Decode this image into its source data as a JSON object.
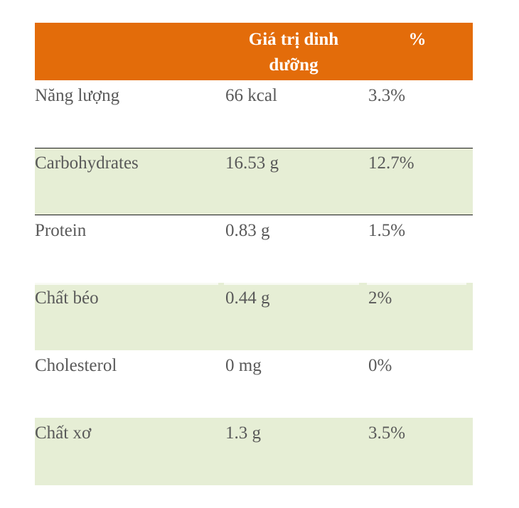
{
  "table": {
    "headers": [
      "",
      "Giá trị dinh dưỡng",
      "%"
    ],
    "rows": [
      {
        "name": "Năng lượng",
        "value": "66 kcal",
        "percent": "3.3%"
      },
      {
        "name": "Carbohydrates",
        "value": "16.53 g",
        "percent": "12.7%"
      },
      {
        "name": "Protein",
        "value": "0.83 g",
        "percent": "1.5%"
      },
      {
        "name": "Chất béo",
        "value": "0.44 g",
        "percent": "2%"
      },
      {
        "name": "Cholesterol",
        "value": "0 mg",
        "percent": "0%"
      },
      {
        "name": "Chất xơ",
        "value": "1.3 g",
        "percent": "3.5%"
      }
    ]
  },
  "colors": {
    "header_bg": "#e36c0a",
    "header_text": "#ffffff",
    "band_bg": "#e6eed5",
    "body_text": "#595959",
    "rule": "#1a1a1a"
  }
}
